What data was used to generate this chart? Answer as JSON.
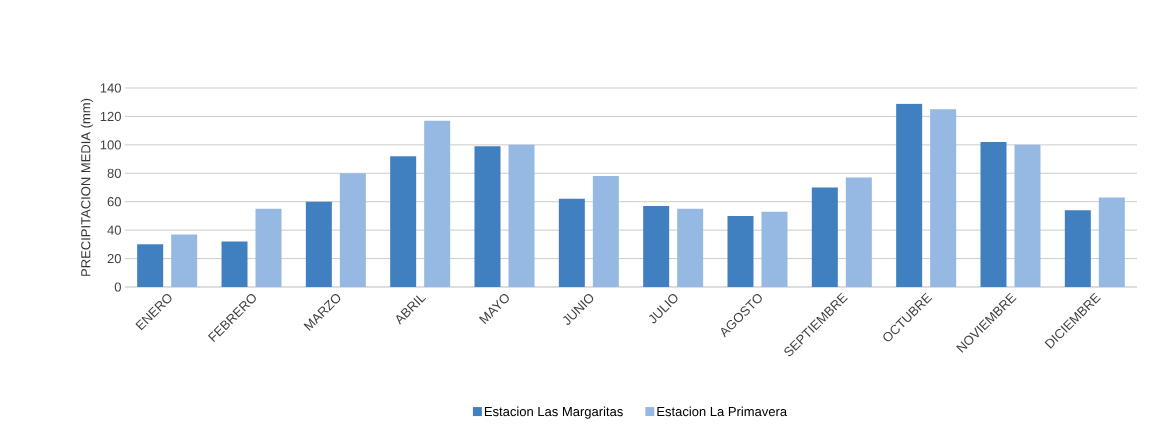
{
  "chart_data": {
    "type": "bar",
    "ylabel": "PRECIPITACION MEDIA (mm)",
    "categories": [
      "ENERO",
      "FEBRERO",
      "MARZO",
      "ABRIL",
      "MAYO",
      "JUNIO",
      "JULIO",
      "AGOSTO",
      "SEPTIEMBRE",
      "OCTUBRE",
      "NOVIEMBRE",
      "DICIEMBRE"
    ],
    "series": [
      {
        "name": "Estacion Las Margaritas",
        "color": "#4080c0",
        "values": [
          30,
          32,
          60,
          92,
          99,
          62,
          57,
          50,
          70,
          129,
          102,
          54
        ]
      },
      {
        "name": "Estacion La Primavera",
        "color": "#95b9e2",
        "values": [
          37,
          55,
          80,
          117,
          100,
          78,
          55,
          53,
          77,
          125,
          100,
          63
        ]
      }
    ],
    "ylim": [
      0,
      140
    ],
    "yticks": [
      0,
      20,
      40,
      60,
      80,
      100,
      120,
      140
    ],
    "grid": "y",
    "legend": "bottom"
  }
}
